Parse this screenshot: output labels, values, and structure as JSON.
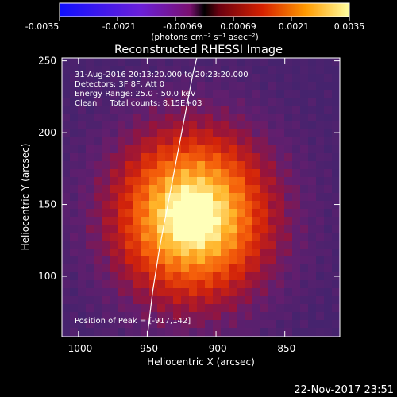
{
  "colorbar": {
    "ticks": [
      "-0.0035",
      "-0.0021",
      "-0.00069",
      "0.00069",
      "0.0021",
      "0.0035"
    ],
    "unit_label": "(photons cm⁻² s⁻¹ asec⁻²)",
    "range": [
      -0.0035,
      0.0035
    ]
  },
  "chart_data": {
    "type": "heatmap",
    "title": "Reconstructed RHESSI Image",
    "xlabel": "Heliocentric X (arcsec)",
    "ylabel": "Heliocentric Y (arcsec)",
    "xlim": [
      -1012,
      -810
    ],
    "ylim": [
      58,
      252
    ],
    "x_ticks": [
      "-1000",
      "-950",
      "-900",
      "-850"
    ],
    "x_tick_values": [
      -1000,
      -950,
      -900,
      -850
    ],
    "y_ticks": [
      "100",
      "150",
      "200",
      "250"
    ],
    "y_tick_values": [
      100,
      150,
      200,
      250
    ],
    "peak": [
      -917,
      142
    ],
    "limb_curve": [
      [
        -950,
        58
      ],
      [
        -946,
        90
      ],
      [
        -941,
        120
      ],
      [
        -935,
        150
      ],
      [
        -929,
        180
      ],
      [
        -923,
        210
      ],
      [
        -917,
        240
      ],
      [
        -914,
        252
      ]
    ],
    "info_lines": [
      "31-Aug-2016 20:13:20.000 to 20:23:20.000",
      "Detectors: 3F 8F, Att 0",
      "Energy Range: 25.0 - 50.0 keV",
      "Clean     Total counts: 8.15E+03"
    ],
    "peak_label": "Position of Peak = [-917,142]"
  },
  "footer": {
    "timestamp": "22-Nov-2017 23:51"
  }
}
